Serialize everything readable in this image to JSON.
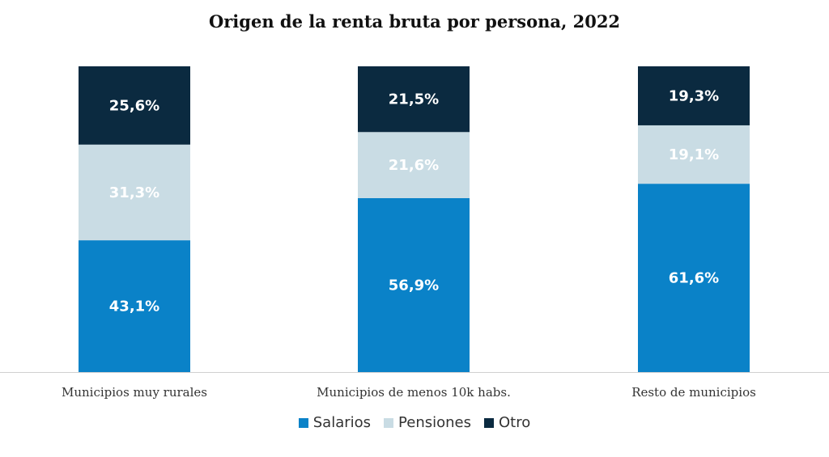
{
  "chart_data": {
    "type": "bar",
    "stacked": true,
    "title": "Origen de la renta bruta por persona, 2022",
    "categories": [
      "Municipios muy rurales",
      "Municipios de menos 10k habs.",
      "Resto de municipios"
    ],
    "series": [
      {
        "name": "Salarios",
        "color": "#0a82c8",
        "values": [
          43.1,
          56.9,
          61.6
        ],
        "labels": [
          "43,1%",
          "56,9%",
          "61,6%"
        ]
      },
      {
        "name": "Pensiones",
        "color": "#c9dce4",
        "values": [
          31.3,
          21.6,
          19.1
        ],
        "labels": [
          "31,3%",
          "21,6%",
          "19,1%"
        ]
      },
      {
        "name": "Otro",
        "color": "#0b2a40",
        "values": [
          25.6,
          21.5,
          19.3
        ],
        "labels": [
          "25,6%",
          "21,5%",
          "19,3%"
        ]
      }
    ],
    "xlabel": "",
    "ylabel": "",
    "ylim": [
      0,
      100
    ],
    "grid": false,
    "legend_position": "bottom-center"
  }
}
